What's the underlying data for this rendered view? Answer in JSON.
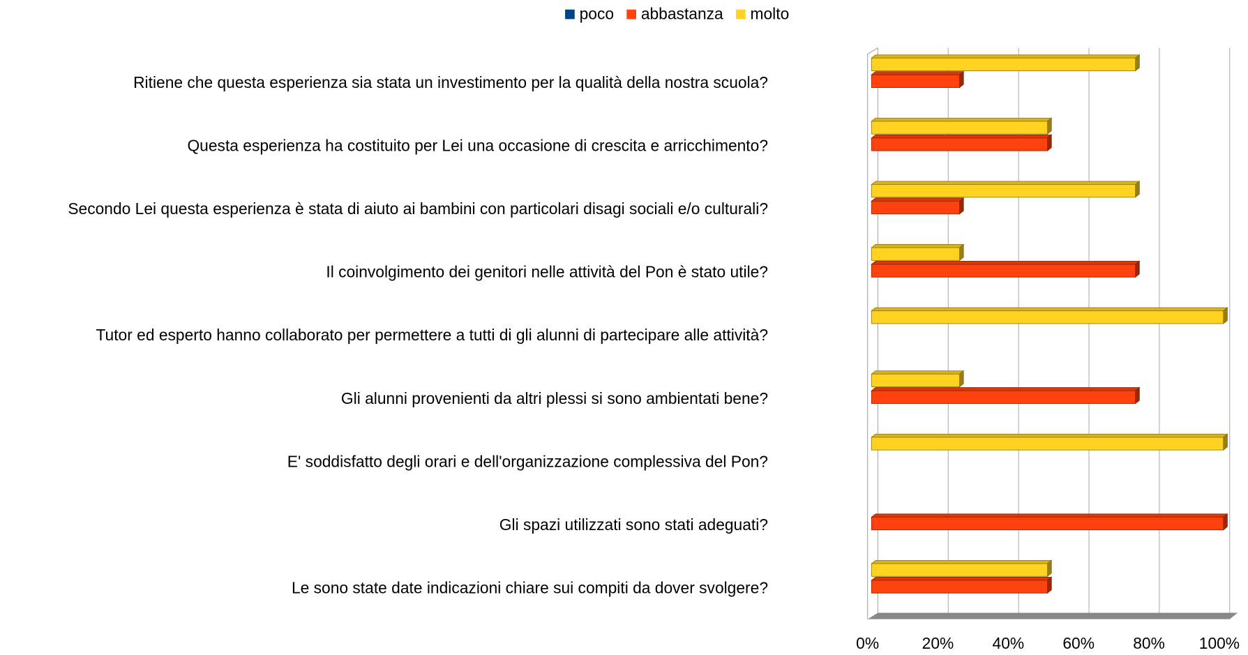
{
  "chart_data": {
    "type": "bar",
    "orientation": "horizontal",
    "categories": [
      "Ritiene che questa esperienza sia stata un investimento per la qualità della nostra scuola?",
      "Questa esperienza ha costituito per Lei una occasione di crescita e arricchimento?",
      "Secondo Lei questa esperienza è stata di aiuto ai bambini con particolari disagi sociali e/o culturali?",
      "Il coinvolgimento dei genitori nelle attività del Pon è stato utile?",
      "Tutor ed esperto hanno collaborato per permettere a tutti di gli alunni di partecipare alle attività?",
      "Gli alunni provenienti da altri plessi si sono ambientati bene?",
      "E' soddisfatto degli orari e dell'organizzazione complessiva del Pon?",
      "Gli spazi utilizzati sono stati adeguati?",
      "Le sono state date indicazioni chiare sui compiti da dover svolgere?"
    ],
    "series": [
      {
        "name": "poco",
        "color": "#004586",
        "values": [
          0,
          0,
          0,
          0,
          0,
          0,
          0,
          0,
          0
        ]
      },
      {
        "name": "abbastanza",
        "color": "#ff420e",
        "values": [
          25,
          50,
          25,
          75,
          0,
          75,
          0,
          100,
          50
        ]
      },
      {
        "name": "molto",
        "color": "#ffd320",
        "values": [
          75,
          50,
          75,
          25,
          100,
          25,
          100,
          0,
          50
        ]
      }
    ],
    "xlim": [
      0,
      100
    ],
    "xticks": [
      {
        "value": 0,
        "label": "0%"
      },
      {
        "value": 20,
        "label": "20%"
      },
      {
        "value": 40,
        "label": "40%"
      },
      {
        "value": 60,
        "label": "60%"
      },
      {
        "value": 80,
        "label": "80%"
      },
      {
        "value": 100,
        "label": "100%"
      }
    ],
    "grid": true,
    "legend": "top"
  }
}
